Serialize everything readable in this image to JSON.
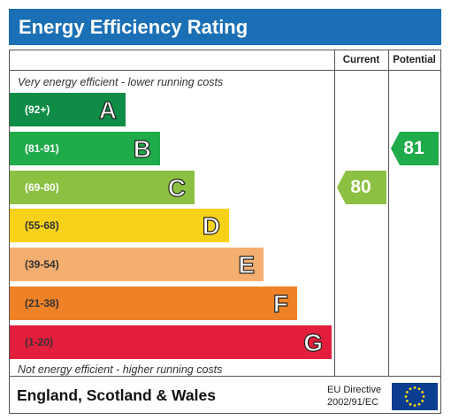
{
  "title": "Energy Efficiency Rating",
  "columns": {
    "current": "Current",
    "potential": "Potential"
  },
  "notes": {
    "top": "Very energy efficient - lower running costs",
    "bottom": "Not energy efficient - higher running costs"
  },
  "footer": {
    "region": "England, Scotland & Wales",
    "directive_line1": "EU Directive",
    "directive_line2": "2002/91/EC"
  },
  "chart_data": {
    "type": "bar",
    "categories": [
      "A",
      "B",
      "C",
      "D",
      "E",
      "F",
      "G"
    ],
    "bands": [
      {
        "letter": "A",
        "range": "(92+)",
        "color": "#0f8c46",
        "text_color": "#ffffff"
      },
      {
        "letter": "B",
        "range": "(81-91)",
        "color": "#20ab4b",
        "text_color": "#ffffff"
      },
      {
        "letter": "C",
        "range": "(69-80)",
        "color": "#8cc043",
        "text_color": "#ffffff"
      },
      {
        "letter": "D",
        "range": "(55-68)",
        "color": "#f7d218",
        "text_color": "#333333"
      },
      {
        "letter": "E",
        "range": "(39-54)",
        "color": "#f4ae6f",
        "text_color": "#333333"
      },
      {
        "letter": "F",
        "range": "(21-38)",
        "color": "#ef8226",
        "text_color": "#333333"
      },
      {
        "letter": "G",
        "range": "(1-20)",
        "color": "#e31e3c",
        "text_color": "#333333"
      }
    ],
    "current": {
      "value": "80",
      "band": "C",
      "color": "#8cc043"
    },
    "potential": {
      "value": "81",
      "band": "B",
      "color": "#20ab4b"
    }
  }
}
